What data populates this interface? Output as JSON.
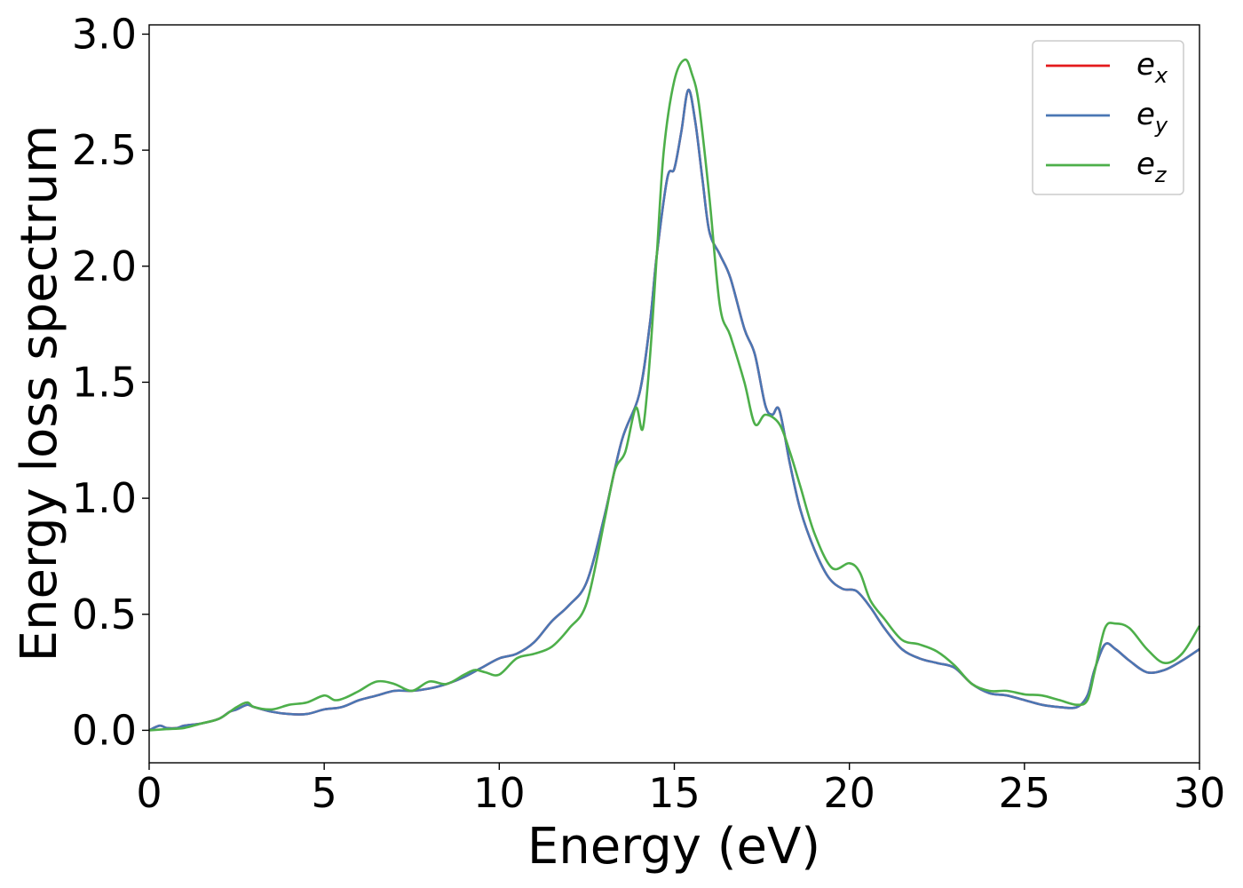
{
  "chart_data": {
    "type": "line",
    "title": "",
    "xlabel": "Energy (eV)",
    "ylabel": "Energy loss spectrum",
    "xlim": [
      0,
      30
    ],
    "ylim": [
      -0.14,
      3.04
    ],
    "xticks": [
      0,
      5,
      10,
      15,
      20,
      25,
      30
    ],
    "xtick_labels": [
      "0",
      "5",
      "10",
      "15",
      "20",
      "25",
      "30"
    ],
    "yticks": [
      0.0,
      0.5,
      1.0,
      1.5,
      2.0,
      2.5,
      3.0
    ],
    "ytick_labels": [
      "0.0",
      "0.5",
      "1.0",
      "1.5",
      "2.0",
      "2.5",
      "3.0"
    ],
    "grid": false,
    "legend_position": "top-right",
    "series": [
      {
        "name": "x",
        "label_base": "e",
        "label_sub": "x",
        "color": "#e41a1c",
        "x": [
          0,
          0.3,
          0.5,
          0.8,
          1.0,
          1.5,
          2.0,
          2.3,
          2.5,
          2.8,
          3.0,
          3.5,
          4.0,
          4.5,
          5.0,
          5.5,
          6.0,
          6.5,
          7.0,
          7.5,
          8.0,
          8.5,
          9.0,
          9.5,
          10.0,
          10.5,
          11.0,
          11.5,
          12.0,
          12.5,
          13.0,
          13.5,
          14.0,
          14.3,
          14.5,
          14.8,
          15.0,
          15.2,
          15.4,
          15.6,
          15.8,
          16.0,
          16.3,
          16.6,
          17.0,
          17.3,
          17.6,
          17.8,
          18.0,
          18.3,
          18.6,
          19.0,
          19.4,
          19.8,
          20.2,
          20.6,
          21.0,
          21.5,
          22.0,
          22.5,
          23.0,
          23.5,
          24.0,
          24.5,
          25.0,
          25.5,
          26.0,
          26.5,
          26.8,
          27.0,
          27.3,
          27.6,
          28.0,
          28.5,
          29.0,
          29.5,
          30.0
        ],
        "y": [
          0.0,
          0.02,
          0.01,
          0.01,
          0.02,
          0.03,
          0.05,
          0.08,
          0.09,
          0.11,
          0.1,
          0.08,
          0.07,
          0.07,
          0.09,
          0.1,
          0.13,
          0.15,
          0.17,
          0.17,
          0.18,
          0.2,
          0.23,
          0.27,
          0.31,
          0.33,
          0.38,
          0.47,
          0.54,
          0.64,
          0.92,
          1.25,
          1.45,
          1.75,
          2.05,
          2.38,
          2.42,
          2.58,
          2.76,
          2.62,
          2.38,
          2.15,
          2.05,
          1.95,
          1.73,
          1.62,
          1.4,
          1.36,
          1.38,
          1.15,
          0.95,
          0.78,
          0.66,
          0.61,
          0.6,
          0.53,
          0.44,
          0.35,
          0.31,
          0.29,
          0.27,
          0.2,
          0.16,
          0.15,
          0.13,
          0.11,
          0.1,
          0.1,
          0.15,
          0.26,
          0.37,
          0.35,
          0.3,
          0.25,
          0.26,
          0.3,
          0.35
        ]
      },
      {
        "name": "y",
        "label_base": "e",
        "label_sub": "y",
        "color": "#4a77b4",
        "x": [
          0,
          0.3,
          0.5,
          0.8,
          1.0,
          1.5,
          2.0,
          2.3,
          2.5,
          2.8,
          3.0,
          3.5,
          4.0,
          4.5,
          5.0,
          5.5,
          6.0,
          6.5,
          7.0,
          7.5,
          8.0,
          8.5,
          9.0,
          9.5,
          10.0,
          10.5,
          11.0,
          11.5,
          12.0,
          12.5,
          13.0,
          13.5,
          14.0,
          14.3,
          14.5,
          14.8,
          15.0,
          15.2,
          15.4,
          15.6,
          15.8,
          16.0,
          16.3,
          16.6,
          17.0,
          17.3,
          17.6,
          17.8,
          18.0,
          18.3,
          18.6,
          19.0,
          19.4,
          19.8,
          20.2,
          20.6,
          21.0,
          21.5,
          22.0,
          22.5,
          23.0,
          23.5,
          24.0,
          24.5,
          25.0,
          25.5,
          26.0,
          26.5,
          26.8,
          27.0,
          27.3,
          27.6,
          28.0,
          28.5,
          29.0,
          29.5,
          30.0
        ],
        "y": [
          0.0,
          0.02,
          0.01,
          0.01,
          0.02,
          0.03,
          0.05,
          0.08,
          0.09,
          0.11,
          0.1,
          0.08,
          0.07,
          0.07,
          0.09,
          0.1,
          0.13,
          0.15,
          0.17,
          0.17,
          0.18,
          0.2,
          0.23,
          0.27,
          0.31,
          0.33,
          0.38,
          0.47,
          0.54,
          0.64,
          0.92,
          1.25,
          1.45,
          1.75,
          2.05,
          2.38,
          2.42,
          2.58,
          2.76,
          2.62,
          2.38,
          2.15,
          2.05,
          1.95,
          1.73,
          1.62,
          1.4,
          1.36,
          1.38,
          1.15,
          0.95,
          0.78,
          0.66,
          0.61,
          0.6,
          0.53,
          0.44,
          0.35,
          0.31,
          0.29,
          0.27,
          0.2,
          0.16,
          0.15,
          0.13,
          0.11,
          0.1,
          0.1,
          0.15,
          0.26,
          0.37,
          0.35,
          0.3,
          0.25,
          0.26,
          0.3,
          0.35
        ]
      },
      {
        "name": "z",
        "label_base": "e",
        "label_sub": "z",
        "color": "#4daf4a",
        "x": [
          0,
          0.5,
          1.0,
          1.5,
          2.0,
          2.5,
          2.8,
          3.0,
          3.5,
          4.0,
          4.5,
          5.0,
          5.3,
          5.6,
          6.0,
          6.5,
          7.0,
          7.5,
          8.0,
          8.5,
          9.0,
          9.3,
          9.6,
          10.0,
          10.5,
          11.0,
          11.5,
          12.0,
          12.5,
          13.0,
          13.3,
          13.6,
          13.9,
          14.1,
          14.3,
          14.5,
          14.7,
          15.0,
          15.3,
          15.5,
          15.7,
          16.0,
          16.3,
          16.6,
          17.0,
          17.3,
          17.6,
          18.0,
          18.3,
          18.6,
          19.0,
          19.5,
          20.0,
          20.3,
          20.6,
          21.0,
          21.5,
          22.0,
          22.5,
          23.0,
          23.5,
          24.0,
          24.5,
          25.0,
          25.5,
          26.0,
          26.5,
          26.8,
          27.0,
          27.3,
          27.6,
          28.0,
          28.5,
          29.0,
          29.5,
          30.0
        ],
        "y": [
          0.0,
          0.005,
          0.01,
          0.03,
          0.05,
          0.1,
          0.12,
          0.1,
          0.09,
          0.11,
          0.12,
          0.15,
          0.13,
          0.14,
          0.17,
          0.21,
          0.2,
          0.17,
          0.21,
          0.2,
          0.24,
          0.26,
          0.25,
          0.24,
          0.31,
          0.33,
          0.36,
          0.44,
          0.55,
          0.9,
          1.12,
          1.2,
          1.39,
          1.3,
          1.6,
          2.05,
          2.5,
          2.8,
          2.89,
          2.83,
          2.7,
          2.3,
          1.83,
          1.7,
          1.5,
          1.32,
          1.36,
          1.32,
          1.2,
          1.05,
          0.85,
          0.7,
          0.72,
          0.68,
          0.56,
          0.48,
          0.39,
          0.37,
          0.34,
          0.28,
          0.2,
          0.17,
          0.17,
          0.155,
          0.15,
          0.13,
          0.11,
          0.13,
          0.25,
          0.44,
          0.46,
          0.44,
          0.35,
          0.29,
          0.33,
          0.45
        ]
      }
    ]
  }
}
